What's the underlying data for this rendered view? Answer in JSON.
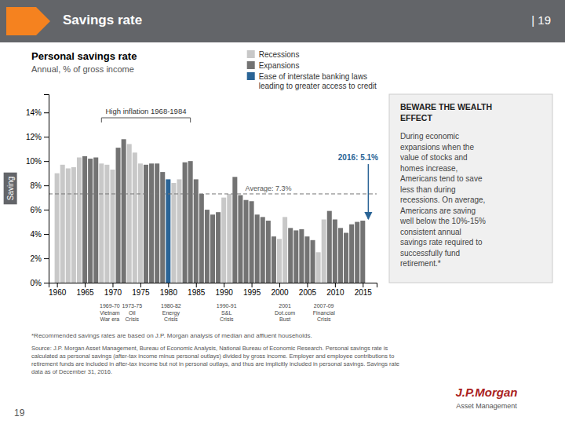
{
  "chart_data": {
    "type": "bar",
    "title": "Personal savings rate",
    "subtitle": "Annual, % of gross income",
    "ylabel": "Saving",
    "x": [
      1960,
      1961,
      1962,
      1963,
      1964,
      1965,
      1966,
      1967,
      1968,
      1969,
      1970,
      1971,
      1972,
      1973,
      1974,
      1975,
      1976,
      1977,
      1978,
      1979,
      1980,
      1981,
      1982,
      1983,
      1984,
      1985,
      1986,
      1987,
      1988,
      1989,
      1990,
      1991,
      1992,
      1993,
      1994,
      1995,
      1996,
      1997,
      1998,
      1999,
      2000,
      2001,
      2002,
      2003,
      2004,
      2005,
      2006,
      2007,
      2008,
      2009,
      2010,
      2011,
      2012,
      2013,
      2014,
      2015
    ],
    "series": [
      {
        "name": "Recessions",
        "color": "#c8c8c8",
        "values": [
          9.0,
          9.7,
          9.4,
          9.5,
          10.3,
          null,
          null,
          null,
          9.8,
          9.7,
          9.3,
          null,
          null,
          11.4,
          10.7,
          9.8,
          null,
          null,
          null,
          null,
          null,
          8.2,
          8.5,
          null,
          null,
          null,
          null,
          null,
          null,
          null,
          7.0,
          7.3,
          null,
          null,
          null,
          null,
          null,
          null,
          null,
          null,
          3.6,
          5.4,
          null,
          null,
          null,
          null,
          null,
          2.5,
          5.2,
          null,
          null,
          null,
          null,
          null,
          null,
          null
        ]
      },
      {
        "name": "Expansions",
        "color": "#737373",
        "values": [
          null,
          null,
          null,
          null,
          null,
          10.4,
          10.2,
          10.3,
          null,
          null,
          null,
          11.1,
          11.8,
          null,
          null,
          null,
          9.7,
          9.8,
          9.8,
          9.1,
          null,
          null,
          null,
          9.9,
          10.0,
          8.5,
          7.3,
          6.0,
          5.6,
          5.8,
          null,
          null,
          8.7,
          7.2,
          6.8,
          6.7,
          5.6,
          5.4,
          5.1,
          3.8,
          null,
          null,
          4.5,
          4.3,
          4.4,
          3.8,
          3.5,
          null,
          null,
          5.9,
          5.2,
          4.5,
          4.1,
          4.8,
          5.0,
          5.1
        ]
      },
      {
        "name": "Ease of interstate banking laws\nleading to greater access to credit",
        "color": "#2a6496",
        "values": [
          null,
          null,
          null,
          null,
          null,
          null,
          null,
          null,
          null,
          null,
          null,
          null,
          null,
          null,
          null,
          null,
          null,
          null,
          null,
          null,
          8.5,
          null,
          null,
          null,
          null,
          null,
          null,
          null,
          null,
          null,
          null,
          null,
          null,
          null,
          null,
          null,
          null,
          null,
          null,
          null,
          null,
          null,
          null,
          null,
          null,
          null,
          null,
          null,
          null,
          null,
          null,
          null,
          null,
          null,
          null,
          null
        ]
      }
    ],
    "xlim": [
      1958.5,
      2017.5
    ],
    "xticks": [
      1960,
      1965,
      1970,
      1975,
      1980,
      1985,
      1990,
      1995,
      2000,
      2005,
      2010,
      2015
    ],
    "ylim": [
      0,
      15.5
    ],
    "yticks": [
      {
        "value": 0,
        "label": "0%"
      },
      {
        "value": 2,
        "label": "2%"
      },
      {
        "value": 4,
        "label": "4%"
      },
      {
        "value": 6,
        "label": "6%"
      },
      {
        "value": 8,
        "label": "8%"
      },
      {
        "value": 10,
        "label": "10%"
      },
      {
        "value": 12,
        "label": "12%"
      },
      {
        "value": 14,
        "label": "14%"
      }
    ],
    "grid": false,
    "legend": "upper right",
    "annotations": [
      {
        "type": "hline",
        "y": 7.3,
        "text": "Average: 7.3%",
        "line_style": "dashed"
      },
      {
        "type": "bracket",
        "x": [
          1968,
          1984
        ],
        "text": "High inflation 1968-1984"
      },
      {
        "type": "arrow",
        "x": 2016,
        "y": 5.1,
        "text": "2016: 5.1%",
        "color": "#2a6496"
      },
      {
        "type": "label",
        "x": 1969.5,
        "text": "1969-70\nVietnam\nWar era"
      },
      {
        "type": "label",
        "x": 1973.5,
        "text": "1973-75\nOil\nCrisis"
      },
      {
        "type": "label",
        "x": 1980.5,
        "text": "1980-82\nEnergy\nCrisis"
      },
      {
        "type": "label",
        "x": 1990.5,
        "text": "1990-91\nS&L\nCrisis"
      },
      {
        "type": "label",
        "x": 2001.0,
        "text": "2001\nDot.com\nBust"
      },
      {
        "type": "label",
        "x": 2008.0,
        "text": "2007-09\nFinancial\nCrisis"
      }
    ]
  },
  "page": {
    "header": "Savings rate",
    "header_page": "| 19",
    "box_title": "BEWARE THE WEALTH\nEFFECT",
    "box_text": "During economic\nexpansions when the\nvalue of stocks and\nhomes increase,\nAmericans tend to save\nless than during\nrecessions. On average,\nAmericans are saving\nwell below the 10%-15%\nconsistent annual\nsavings rate required to\nsuccessfully fund\nretirement.*",
    "footnote": "*Recommended savings rates are based on J.P. Morgan analysis of median and affluent households.",
    "source": "Source: J.P. Morgan Asset Management, Bureau of Economic Analysis, National Bureau of Economic Research. Personal savings rate is\ncalculated as personal savings (after-tax income minus personal outlays) divided by gross income. Employer and employee contributions to\nretirement funds are included in after-tax income but not in personal outlays, and thus are implicitly included in personal savings. Savings rate\ndata as of December 31, 2016.",
    "page_number": "19",
    "logo": "J.P.Morgan",
    "logo_subtitle": "Asset Management"
  }
}
